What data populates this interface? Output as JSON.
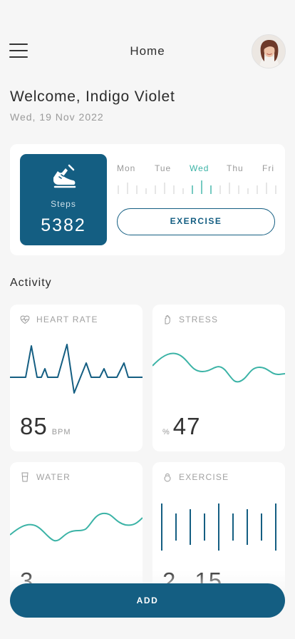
{
  "header": {
    "title": "Home",
    "menu_icon": "hamburger-menu-icon",
    "avatar_icon": "user-avatar"
  },
  "welcome": {
    "greeting": "Welcome, Indigo Violet",
    "date": "Wed, 19 Nov 2022"
  },
  "steps": {
    "icon": "sneaker-icon",
    "label": "Steps",
    "value": "5382",
    "days": [
      {
        "label": "Mon",
        "active": false
      },
      {
        "label": "Tue",
        "active": false
      },
      {
        "label": "Wed",
        "active": true
      },
      {
        "label": "Thu",
        "active": false
      },
      {
        "label": "Fri",
        "active": false
      }
    ],
    "exercise_button": "EXERCISE"
  },
  "activity": {
    "title": "Activity",
    "heart_rate": {
      "icon": "heart-pulse-icon",
      "title": "HEART RATE",
      "value": "85",
      "unit": "BPM"
    },
    "stress": {
      "icon": "hand-icon",
      "title": "STRESS",
      "prefix": "%",
      "value": "47"
    },
    "water": {
      "icon": "glass-icon",
      "title": "WATER",
      "value": "3"
    },
    "exercise": {
      "icon": "kettlebell-icon",
      "title": "EXERCISE",
      "value": "2",
      "value2": "15"
    }
  },
  "add_button": "ADD",
  "colors": {
    "primary": "#145e82",
    "accent": "#3bb3a6",
    "background": "#f6f6f6"
  }
}
